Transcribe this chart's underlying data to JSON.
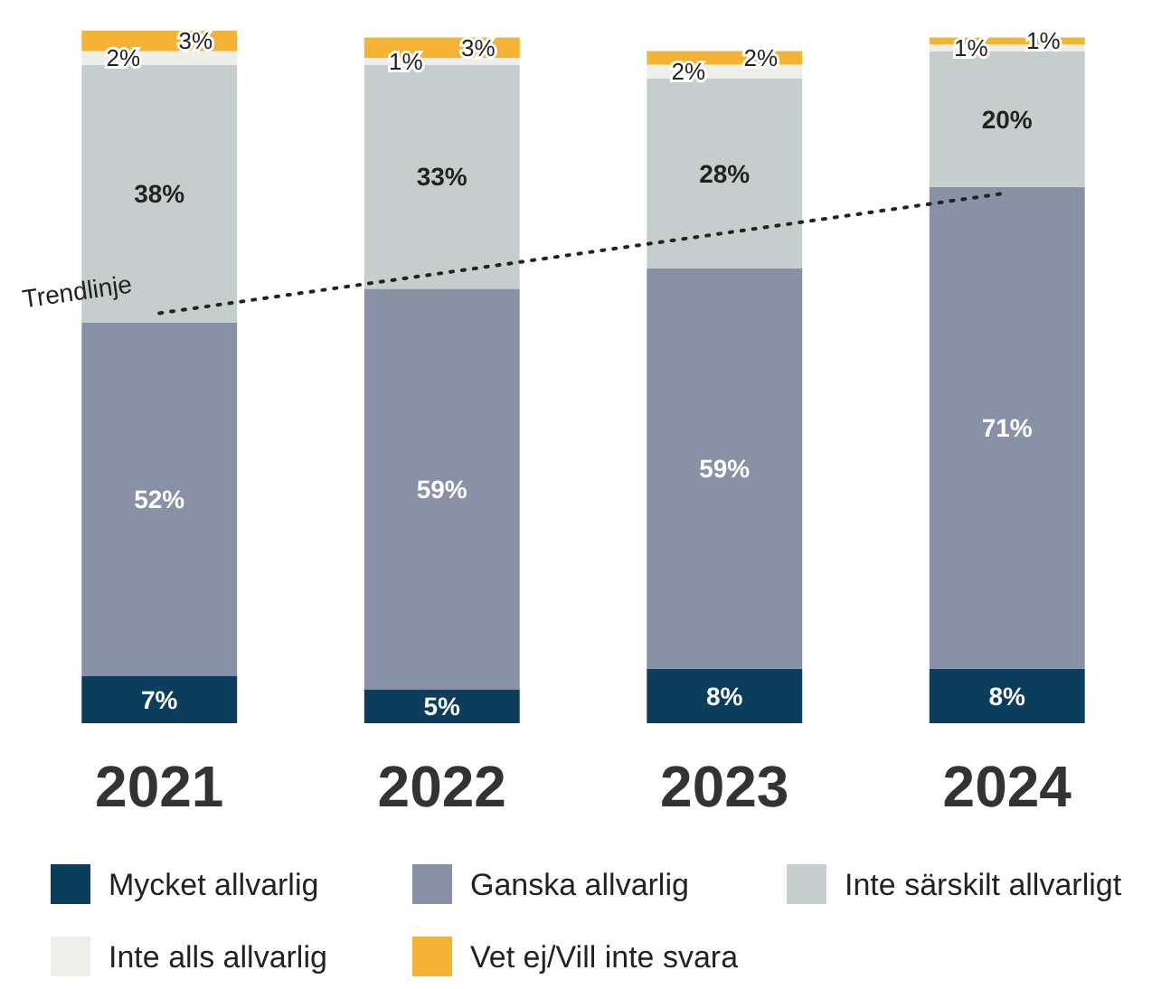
{
  "chart_data": {
    "type": "bar",
    "stacked": true,
    "categories": [
      "2021",
      "2022",
      "2023",
      "2024"
    ],
    "series": [
      {
        "name": "Mycket allvarlig",
        "color": "#0d3d5c",
        "values": [
          7,
          5,
          8,
          8
        ],
        "value_labels": [
          "7%",
          "5%",
          "8%",
          "8%"
        ]
      },
      {
        "name": "Ganska allvarlig",
        "color": "#8891a6",
        "values": [
          52,
          59,
          59,
          71
        ],
        "value_labels": [
          "52%",
          "59%",
          "59%",
          "71%"
        ]
      },
      {
        "name": "Inte särskilt allvarligt",
        "color": "#c5cecd",
        "values": [
          38,
          33,
          28,
          20
        ],
        "value_labels": [
          "38%",
          "33%",
          "28%",
          "20%"
        ]
      },
      {
        "name": "Inte alls allvarlig",
        "color": "#eeeeea",
        "values": [
          2,
          1,
          2,
          1
        ],
        "value_labels": [
          "2%",
          "1%",
          "2%",
          "1%"
        ]
      },
      {
        "name": "Vet ej/Vill inte svara",
        "color": "#f5b335",
        "values": [
          3,
          3,
          2,
          1
        ],
        "value_labels": [
          "3%",
          "3%",
          "2%",
          "1%"
        ]
      },
      {
        "name": "Trendlinje",
        "type": "line",
        "color": "#222222",
        "line_style": "dotted",
        "marker": "none",
        "values": [
          60.4,
          66.3,
          72.2,
          78.1
        ]
      }
    ],
    "legend": "bottom"
  }
}
